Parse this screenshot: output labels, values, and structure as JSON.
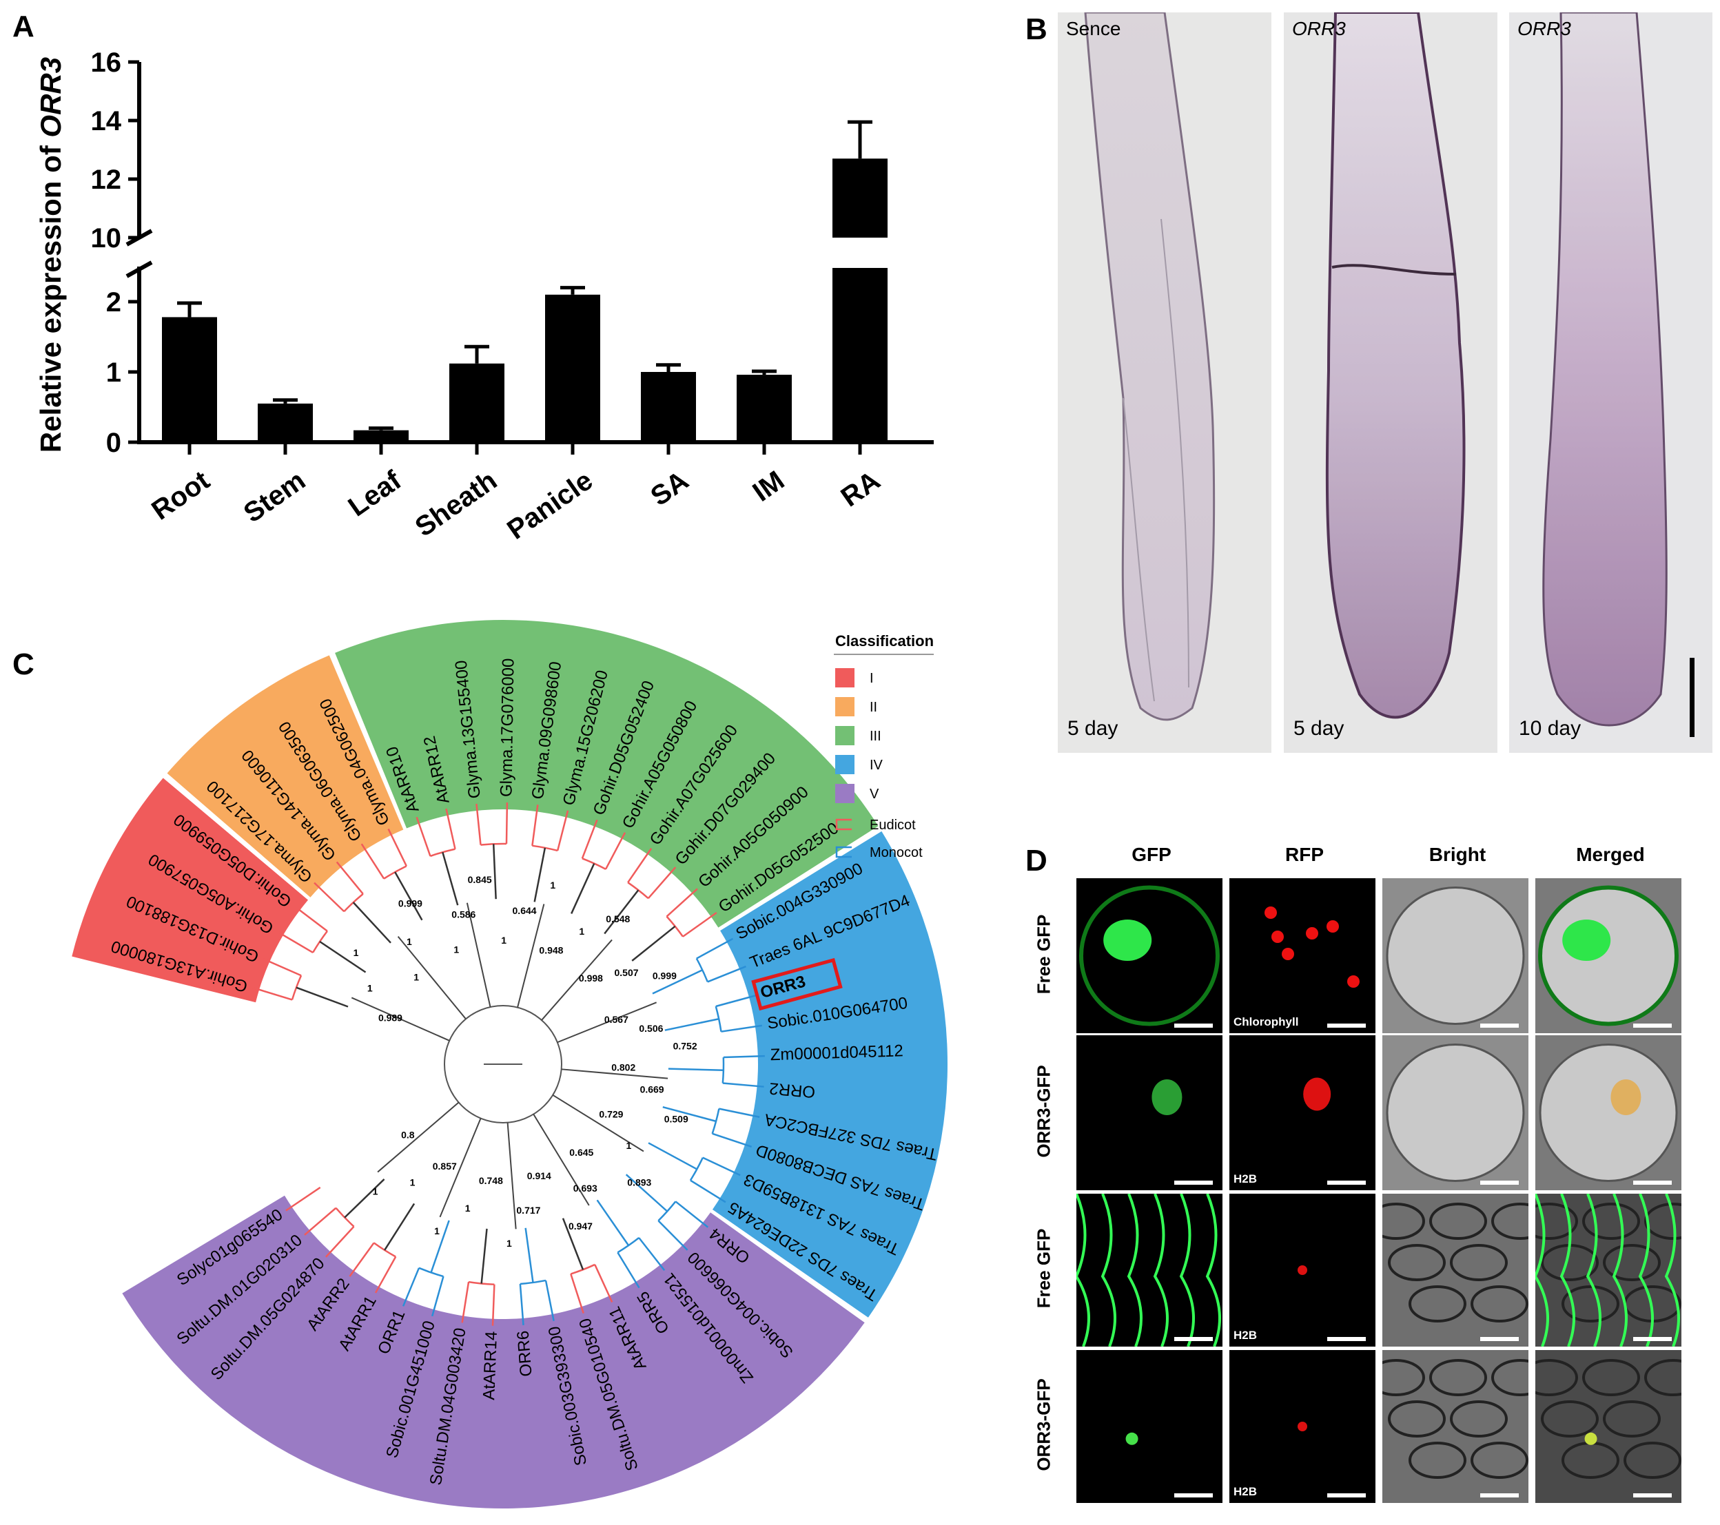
{
  "figure": {
    "panels": {
      "A": {
        "letter": "A"
      },
      "B": {
        "letter": "B"
      },
      "C": {
        "letter": "C"
      },
      "D": {
        "letter": "D"
      }
    }
  },
  "chart_data": {
    "type": "bar",
    "title": "",
    "xlabel": "",
    "ylabel_prefix": "Relative expression of ",
    "ylabel_gene": "ORR3",
    "categories": [
      "Root",
      "Stem",
      "Leaf",
      "Sheath",
      "Panicle",
      "SA",
      "IM",
      "RA"
    ],
    "values": [
      1.78,
      0.55,
      0.17,
      1.12,
      2.1,
      1.0,
      0.96,
      12.7
    ],
    "errors": [
      0.2,
      0.05,
      0.03,
      0.24,
      0.1,
      0.1,
      0.05,
      1.25
    ],
    "y_axis_break": [
      2.5,
      10
    ],
    "ylim_lower": [
      0,
      2.5
    ],
    "ylim_upper": [
      10,
      16
    ],
    "yticks_lower": [
      "0",
      "1",
      "2"
    ],
    "yticks_upper": [
      "10",
      "12",
      "14",
      "16"
    ],
    "bar_color": "#000000"
  },
  "panel_b": {
    "images": [
      {
        "top_label": "Sence",
        "italic": false,
        "bottom_label": "5 day"
      },
      {
        "top_label": "ORR3",
        "italic": true,
        "bottom_label": "5 day"
      },
      {
        "top_label": "ORR3",
        "italic": true,
        "bottom_label": "10 day"
      }
    ]
  },
  "panel_c": {
    "legend_title": "Classification",
    "classes": [
      {
        "label": "I",
        "color": "#f05b5b"
      },
      {
        "label": "II",
        "color": "#f8aa5e"
      },
      {
        "label": "III",
        "color": "#73c074"
      },
      {
        "label": "IV",
        "color": "#44a6e0"
      },
      {
        "label": "V",
        "color": "#9a7bc4"
      }
    ],
    "branch_types": [
      {
        "label": "Eudicot",
        "color": "#f05b5b"
      },
      {
        "label": "Monocot",
        "color": "#2a8fd6"
      }
    ],
    "leaves": [
      {
        "name": "Gohir.A13G180000",
        "cls": 0
      },
      {
        "name": "Gohir.D13G188100",
        "cls": 0
      },
      {
        "name": "Gohir.A05G057900",
        "cls": 0
      },
      {
        "name": "Gohir.D05G059900",
        "cls": 0
      },
      {
        "name": "Glyma.17G217100",
        "cls": 1
      },
      {
        "name": "Glyma.14G110600",
        "cls": 1
      },
      {
        "name": "Glyma.06G063500",
        "cls": 1
      },
      {
        "name": "Glyma.04G062500",
        "cls": 1
      },
      {
        "name": "AtARR10",
        "cls": 2
      },
      {
        "name": "AtARR12",
        "cls": 2
      },
      {
        "name": "Glyma.13G155400",
        "cls": 2
      },
      {
        "name": "Glyma.17G076000",
        "cls": 2
      },
      {
        "name": "Glyma.09G098600",
        "cls": 2
      },
      {
        "name": "Glyma.15G206200",
        "cls": 2
      },
      {
        "name": "Gohir.D05G052400",
        "cls": 2
      },
      {
        "name": "Gohir.A05G050800",
        "cls": 2
      },
      {
        "name": "Gohir.A07G025600",
        "cls": 2
      },
      {
        "name": "Gohir.D07G029400",
        "cls": 2
      },
      {
        "name": "Gohir.A05G050900",
        "cls": 2
      },
      {
        "name": "Gohir.D05G052500",
        "cls": 2
      },
      {
        "name": "Sobic.004G330900",
        "cls": 3
      },
      {
        "name": "Traes 6AL 9C9D677D4",
        "cls": 3
      },
      {
        "name": "ORR3",
        "cls": 3,
        "highlight": true
      },
      {
        "name": "Sobic.010G064700",
        "cls": 3
      },
      {
        "name": "Zm00001d045112",
        "cls": 3
      },
      {
        "name": "ORR2",
        "cls": 3
      },
      {
        "name": "Traes 7DS 327FBC2CA",
        "cls": 3
      },
      {
        "name": "Traes 7AS DECB8080D",
        "cls": 3
      },
      {
        "name": "Traes 7AS 1318B59D3",
        "cls": 3
      },
      {
        "name": "Traes 7DS 22DE624A5",
        "cls": 3
      },
      {
        "name": "ORR4",
        "cls": 4
      },
      {
        "name": "Sobic.004G066600",
        "cls": 4
      },
      {
        "name": "Zm00001d015521",
        "cls": 4
      },
      {
        "name": "ORR5",
        "cls": 4
      },
      {
        "name": "AtARR11",
        "cls": 4
      },
      {
        "name": "Soltu.DM.05G010540",
        "cls": 4
      },
      {
        "name": "Sobic.003G393300",
        "cls": 4
      },
      {
        "name": "ORR6",
        "cls": 4
      },
      {
        "name": "AtARR14",
        "cls": 4
      },
      {
        "name": "Soltu.DM.04G003420",
        "cls": 4
      },
      {
        "name": "Sobic.001G451000",
        "cls": 4
      },
      {
        "name": "ORR1",
        "cls": 4
      },
      {
        "name": "AtARR1",
        "cls": 4
      },
      {
        "name": "AtARR2",
        "cls": 4
      },
      {
        "name": "Soltu.DM.05G024870",
        "cls": 4
      },
      {
        "name": "Soltu.DM.01G020310",
        "cls": 4
      },
      {
        "name": "Solyc01g065540",
        "cls": 4
      }
    ],
    "bootstrap_values": [
      "0.989",
      "1",
      "1",
      "1",
      "1",
      "0.999",
      "1",
      "0.586",
      "0.845",
      "1",
      "0.644",
      "1",
      "0.948",
      "1",
      "0.548",
      "0.998",
      "0.507",
      "0.999",
      "0.567",
      "0.506",
      "0.752",
      "0.802",
      "0.669",
      "0.509",
      "0.729",
      "1",
      "0.893",
      "0.645",
      "0.693",
      "0.947",
      "0.914",
      "0.717",
      "1",
      "0.748",
      "1",
      "1",
      "0.857",
      "1",
      "1",
      "0.8"
    ]
  },
  "panel_d": {
    "columns": [
      "GFP",
      "RFP",
      "Bright",
      "Merged"
    ],
    "rows": [
      {
        "label": "Free GFP",
        "rfp_label": "Chlorophyll"
      },
      {
        "label": "ORR3-GFP",
        "rfp_label": "H2B"
      },
      {
        "label": "Free GFP",
        "rfp_label": "H2B"
      },
      {
        "label": "ORR3-GFP",
        "rfp_label": "H2B"
      }
    ]
  }
}
